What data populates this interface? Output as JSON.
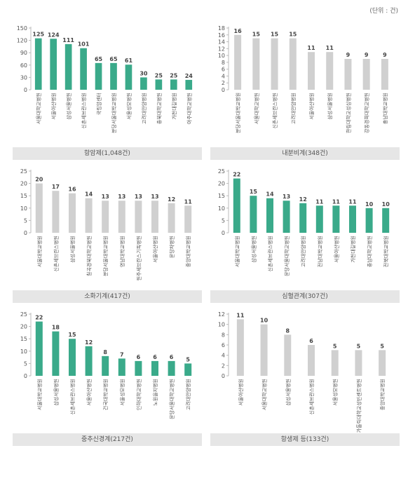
{
  "unit_label": "(단위 : 건)",
  "colors": {
    "teal": "#3aaa8a",
    "gray": "#d0d0d0",
    "axis": "#bbbbbb",
    "text": "#555555"
  },
  "chart_data": [
    {
      "type": "bar",
      "title": "항암제(1,048건)",
      "highlight": true,
      "ylim": [
        0,
        150
      ],
      "yticks": [
        0,
        30,
        60,
        90,
        120,
        150
      ],
      "categories": [
        "서울대학교병원",
        "서울아산병원",
        "삼성서울병원",
        "신촌세브란스병원",
        "국립암센터",
        "분당서울대학교병원",
        "서울성모병원",
        "고려대안암병원",
        "충북대학교병원",
        "가천대길병원",
        "아주대학교병원"
      ],
      "values": [
        125,
        124,
        111,
        101,
        65,
        65,
        61,
        30,
        25,
        25,
        24
      ]
    },
    {
      "type": "bar",
      "title": "내분비계(348건)",
      "highlight": false,
      "ylim": [
        0,
        18
      ],
      "yticks": [
        0,
        2,
        4,
        6,
        8,
        10,
        12,
        14,
        16,
        18
      ],
      "categories": [
        "분당서울대학교병원",
        "서울대학교병원",
        "신촌세브란스병원",
        "고려대안암병원",
        "서울아산병원",
        "삼성서울병원",
        "한림대학교성심병원",
        "강동경희대학교병원",
        "충남대학교병원"
      ],
      "values": [
        16,
        15,
        15,
        15,
        11,
        11,
        9,
        9,
        9
      ]
    },
    {
      "type": "bar",
      "title": "소화기계(417건)",
      "highlight": false,
      "ylim": [
        0,
        25
      ],
      "yticks": [
        0,
        5,
        10,
        15,
        20,
        25
      ],
      "categories": [
        "서울대학교병원",
        "신촌세브란스병원",
        "삼성서울병원",
        "칠곡경북대학교병원",
        "분당서울대학교병원",
        "영남대학교병원",
        "원주세브란스기독병원",
        "서울아산병원",
        "분당차병원",
        "중앙대학교병원"
      ],
      "values": [
        20,
        17,
        16,
        14,
        13,
        13,
        13,
        13,
        12,
        11
      ]
    },
    {
      "type": "bar",
      "title": "심혈관계(307건)",
      "highlight": true,
      "ylim": [
        0,
        25
      ],
      "yticks": [
        0,
        5,
        10,
        15,
        20,
        25
      ],
      "categories": [
        "서울대학교병원",
        "삼성서울병원",
        "신촌세브란스병원",
        "분당서울대학교병원",
        "고려대안암병원",
        "전남대학교병원",
        "서울아산병원",
        "가천대길병원",
        "충남대학교병원",
        "전북대학교병원"
      ],
      "values": [
        22,
        15,
        14,
        13,
        12,
        11,
        11,
        11,
        10,
        10
      ]
    },
    {
      "type": "bar",
      "title": "중추신경계(217건)",
      "highlight": true,
      "ylim": [
        0,
        25
      ],
      "yticks": [
        0,
        5,
        10,
        15,
        20,
        25
      ],
      "categories": [
        "서울대학교병원",
        "삼성서울병원",
        "신촌세브란스병원",
        "서울아산병원",
        "건국대학교병원",
        "서울성모병원",
        "인하대학교병원",
        "노원을지병원",
        "분당서울대학교병원",
        "고려대안암병원"
      ],
      "values": [
        22,
        18,
        15,
        12,
        8,
        7,
        6,
        6,
        6,
        5
      ]
    },
    {
      "type": "bar",
      "title": "항생제 등(133건)",
      "highlight": false,
      "ylim": [
        0,
        12
      ],
      "yticks": [
        0,
        2,
        4,
        6,
        8,
        10,
        12
      ],
      "categories": [
        "서울아산병원",
        "서울대학교병원",
        "삼성서울병원",
        "신촌세브란스병원",
        "서울성모병원",
        "가톨릭대학교성빈센트병원",
        "중앙대학교병원"
      ],
      "values": [
        11,
        10,
        8,
        6,
        5,
        5,
        5
      ]
    }
  ]
}
